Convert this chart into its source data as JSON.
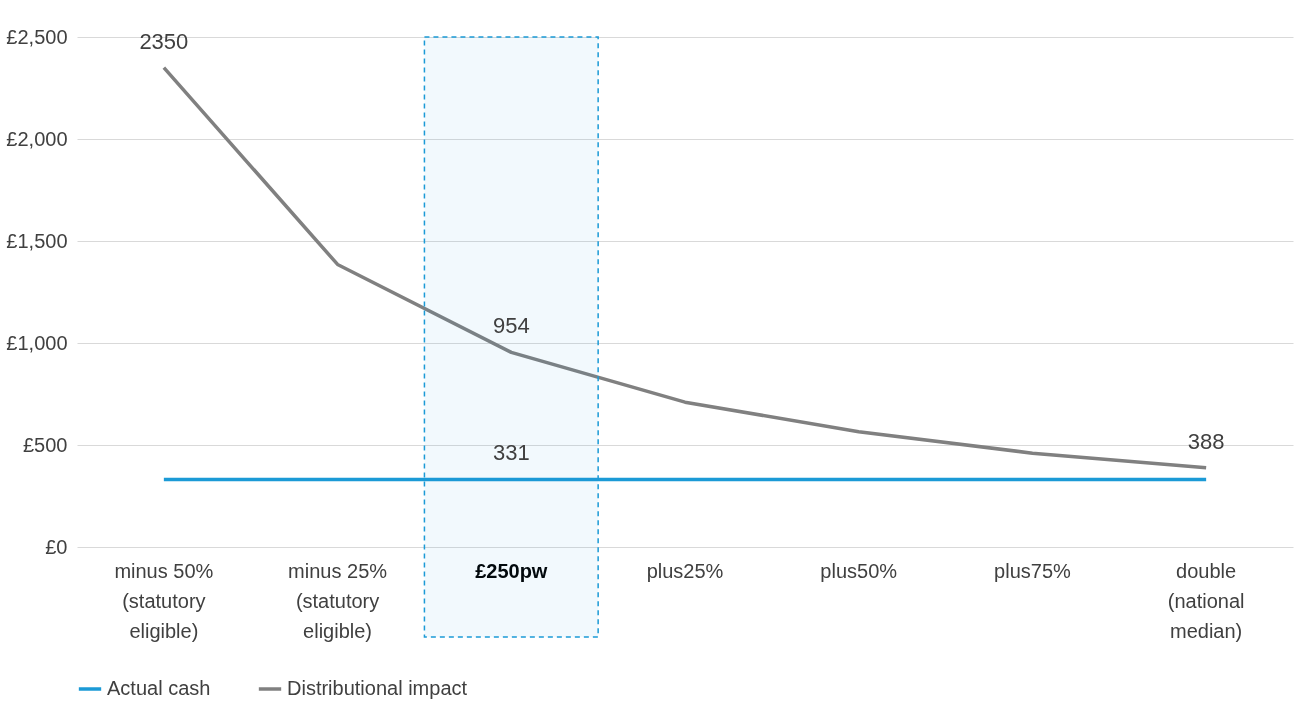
{
  "chart_data": {
    "type": "line",
    "categories": [
      "minus 50%\n(statutory\neligible)",
      "minus 25%\n(statutory\neligible)",
      "£250pw",
      "plus25%",
      "plus50%",
      "plus75%",
      "double\n(national\nmedian)"
    ],
    "series": [
      {
        "name": "Actual cash",
        "color": "#1b9ad6",
        "values": [
          331,
          331,
          331,
          331,
          331,
          331,
          331
        ],
        "value_labels": [
          null,
          null,
          "331",
          null,
          null,
          null,
          null
        ]
      },
      {
        "name": "Distributional impact",
        "color": "#808080",
        "values": [
          2350,
          1385,
          954,
          710,
          565,
          460,
          388
        ],
        "value_labels": [
          "2350",
          null,
          "954",
          null,
          null,
          null,
          "388"
        ]
      }
    ],
    "ylim": [
      0,
      2500
    ],
    "yticks": [
      {
        "value": 0,
        "label": "£0"
      },
      {
        "value": 500,
        "label": "£500"
      },
      {
        "value": 1000,
        "label": "£1,000"
      },
      {
        "value": 1500,
        "label": "£1,500"
      },
      {
        "value": 2000,
        "label": "£2,000"
      },
      {
        "value": 2500,
        "label": "£2,500"
      }
    ],
    "bands": [
      {
        "axis": "x",
        "from": "£250pw",
        "to": "£250pw",
        "color": "#1b9ad6"
      }
    ],
    "grid": "y",
    "legend": "bottom",
    "marker": "none",
    "line_style": "solid"
  }
}
